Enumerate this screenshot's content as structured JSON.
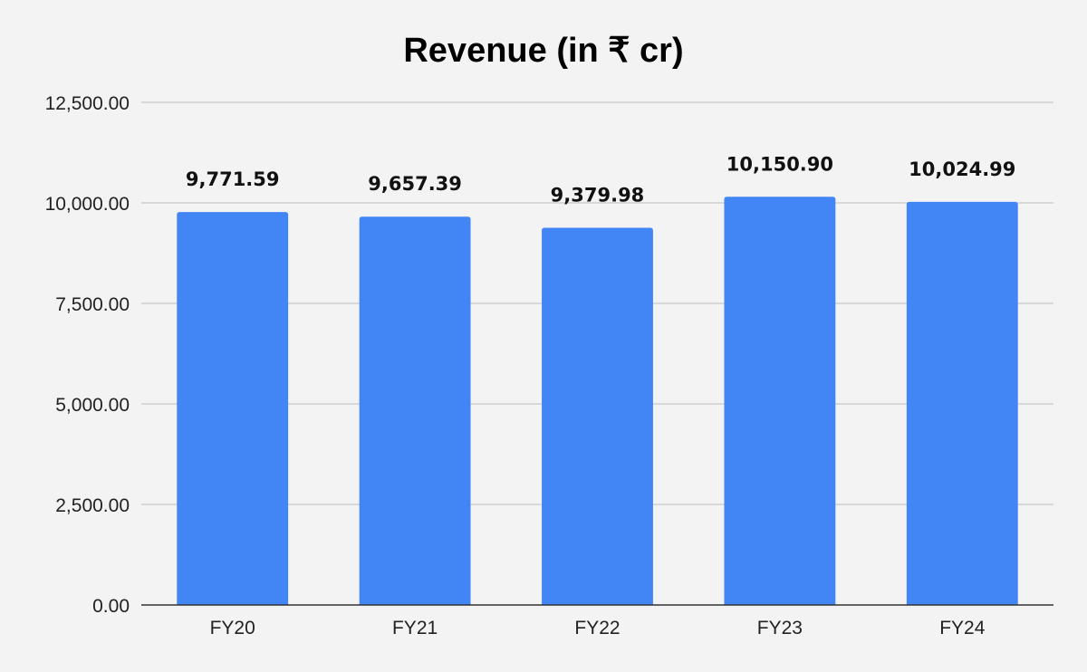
{
  "chart_data": {
    "type": "bar",
    "title": "Revenue (in ₹ cr)",
    "xlabel": "",
    "ylabel": "",
    "categories": [
      "FY20",
      "FY21",
      "FY22",
      "FY23",
      "FY24"
    ],
    "values": [
      9771.59,
      9657.39,
      9379.98,
      10150.9,
      10024.99
    ],
    "data_labels": [
      "9,771.59",
      "9,657.39",
      "9,379.98",
      "10,150.90",
      "10,024.99"
    ],
    "ylim": [
      0,
      12500
    ],
    "yticks": [
      0,
      2500,
      5000,
      7500,
      10000,
      12500
    ],
    "ytick_labels": [
      "0.00",
      "2,500.00",
      "5,000.00",
      "7,500.00",
      "10,000.00",
      "12,500.00"
    ],
    "grid": true,
    "legend": "none",
    "bar_color": "#4285f4",
    "background_color": "#f3f3f3"
  }
}
